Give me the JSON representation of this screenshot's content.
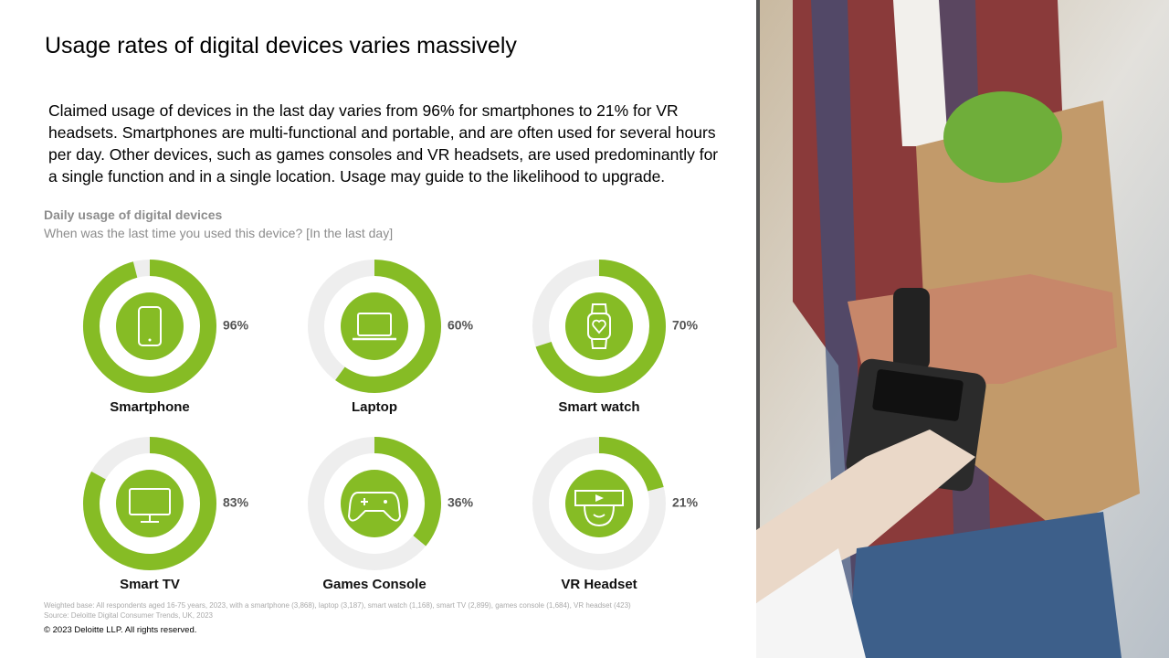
{
  "title": "Usage rates of digital devices varies massively",
  "body": "Claimed usage of devices in the last day varies from 96% for smartphones to 21% for VR headsets. Smartphones are multi-functional and portable, and are often used for several hours per day. Other devices, such as games consoles and VR headsets, are used predominantly for a single function and in a single location. Usage may guide to the likelihood to upgrade.",
  "chart_title": "Daily usage of digital devices",
  "chart_subtitle": "When was the last time you used this device? [In the last day]",
  "chart_data": [
    {
      "type": "donut",
      "title": "Smartphone",
      "values": [
        96
      ],
      "value_labels": [
        "96%"
      ],
      "ylim": [
        0,
        100
      ],
      "color": "#86bc25"
    },
    {
      "type": "donut",
      "title": "Laptop",
      "values": [
        60
      ],
      "value_labels": [
        "60%"
      ],
      "ylim": [
        0,
        100
      ],
      "color": "#86bc25"
    },
    {
      "type": "donut",
      "title": "Smart watch",
      "values": [
        70
      ],
      "value_labels": [
        "70%"
      ],
      "ylim": [
        0,
        100
      ],
      "color": "#86bc25"
    },
    {
      "type": "donut",
      "title": "Smart TV",
      "values": [
        83
      ],
      "value_labels": [
        "83%"
      ],
      "ylim": [
        0,
        100
      ],
      "color": "#86bc25"
    },
    {
      "type": "donut",
      "title": "Games Console",
      "values": [
        36
      ],
      "value_labels": [
        "36%"
      ],
      "ylim": [
        0,
        100
      ],
      "color": "#86bc25"
    },
    {
      "type": "donut",
      "title": "VR Headset",
      "values": [
        21
      ],
      "value_labels": [
        "21%"
      ],
      "ylim": [
        0,
        100
      ],
      "color": "#86bc25"
    }
  ],
  "footnotes": [
    "Weighted base: All respondents aged 16-75 years, 2023, with a smartphone (3,868), laptop (3,187), smart watch (1,168), smart TV (2,899), games console (1,684), VR headset (423)",
    "Source: Deloitte Digital Consumer Trends, UK, 2023"
  ],
  "copyright": "© 2023 Deloitte LLP. All rights reserved."
}
